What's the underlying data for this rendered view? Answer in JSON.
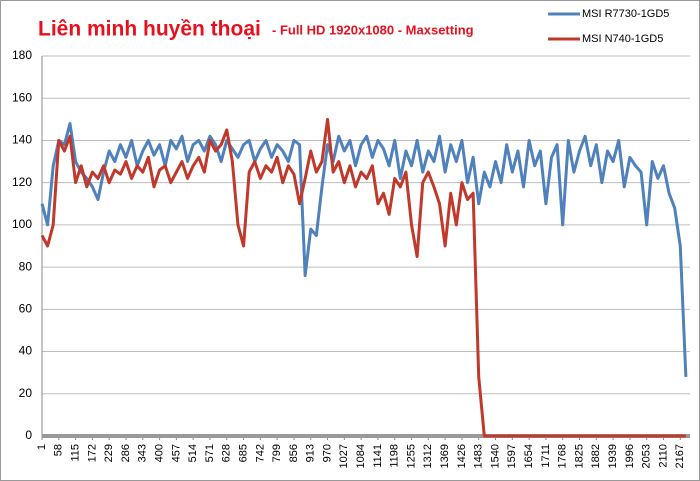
{
  "chart_data": {
    "type": "line",
    "title": "Liên minh huyền thoại",
    "subtitle": "- Full HD 1920x1080 - Maxsetting",
    "x": [
      1,
      20,
      39,
      58,
      77,
      96,
      115,
      134,
      153,
      172,
      191,
      210,
      229,
      248,
      267,
      286,
      305,
      324,
      343,
      362,
      381,
      400,
      419,
      438,
      457,
      476,
      495,
      514,
      533,
      552,
      571,
      590,
      609,
      628,
      647,
      666,
      685,
      704,
      723,
      742,
      761,
      780,
      799,
      818,
      837,
      856,
      875,
      894,
      913,
      932,
      951,
      970,
      989,
      1008,
      1027,
      1046,
      1065,
      1084,
      1103,
      1122,
      1141,
      1160,
      1179,
      1198,
      1217,
      1236,
      1255,
      1274,
      1293,
      1312,
      1331,
      1350,
      1369,
      1388,
      1407,
      1426,
      1445,
      1464,
      1483,
      1502,
      1521,
      1540,
      1559,
      1578,
      1597,
      1616,
      1635,
      1654,
      1673,
      1692,
      1711,
      1730,
      1749,
      1768,
      1787,
      1806,
      1825,
      1844,
      1863,
      1882,
      1901,
      1920,
      1939,
      1958,
      1977,
      1996,
      2015,
      2034,
      2053,
      2072,
      2091,
      2110,
      2129,
      2148,
      2167,
      2186
    ],
    "series": [
      {
        "name": "MSI R7730-1GD5",
        "color": "#4f81bd",
        "values": [
          110,
          100,
          128,
          140,
          138,
          148,
          130,
          125,
          122,
          118,
          112,
          125,
          135,
          130,
          138,
          132,
          140,
          128,
          135,
          140,
          133,
          138,
          128,
          140,
          136,
          142,
          130,
          138,
          140,
          135,
          142,
          138,
          130,
          140,
          136,
          132,
          138,
          140,
          130,
          136,
          140,
          132,
          138,
          135,
          130,
          140,
          138,
          76,
          98,
          95,
          118,
          138,
          130,
          142,
          135,
          140,
          128,
          138,
          142,
          132,
          140,
          136,
          128,
          140,
          122,
          135,
          128,
          140,
          125,
          135,
          130,
          142,
          125,
          138,
          130,
          140,
          120,
          132,
          110,
          125,
          118,
          130,
          120,
          138,
          125,
          135,
          118,
          140,
          128,
          135,
          110,
          132,
          138,
          100,
          140,
          125,
          135,
          142,
          128,
          138,
          120,
          135,
          130,
          140,
          118,
          132,
          128,
          125,
          100,
          130,
          122,
          128,
          115,
          108,
          90,
          28
        ]
      },
      {
        "name": "MSI N740-1GD5",
        "color": "#c0392b",
        "values": [
          95,
          90,
          100,
          140,
          135,
          142,
          120,
          128,
          118,
          125,
          122,
          128,
          120,
          126,
          124,
          130,
          122,
          128,
          125,
          132,
          118,
          126,
          128,
          120,
          125,
          130,
          122,
          128,
          132,
          125,
          140,
          135,
          138,
          145,
          130,
          100,
          90,
          125,
          130,
          122,
          128,
          125,
          132,
          120,
          128,
          124,
          110,
          122,
          135,
          125,
          130,
          150,
          125,
          130,
          120,
          128,
          118,
          125,
          122,
          128,
          110,
          115,
          105,
          122,
          118,
          125,
          100,
          85,
          120,
          125,
          118,
          110,
          90,
          115,
          100,
          120,
          112,
          115,
          28,
          0,
          0,
          0,
          0,
          0,
          0,
          0,
          0,
          0,
          0,
          0,
          0,
          0,
          0,
          0,
          0,
          0,
          0,
          0,
          0,
          0,
          0,
          0,
          0,
          0,
          0,
          0,
          0,
          0,
          0,
          0,
          0,
          0,
          0,
          0,
          0,
          0
        ]
      }
    ],
    "xlim": [
      1,
      2200
    ],
    "xticks": [
      1,
      58,
      115,
      172,
      229,
      286,
      343,
      400,
      457,
      514,
      571,
      628,
      685,
      742,
      799,
      856,
      913,
      970,
      1027,
      1084,
      1141,
      1198,
      1255,
      1312,
      1369,
      1426,
      1483,
      1540,
      1597,
      1654,
      1711,
      1768,
      1825,
      1882,
      1939,
      1996,
      2053,
      2110,
      2167
    ],
    "ylim": [
      0,
      180
    ],
    "yticks": [
      0,
      20,
      40,
      60,
      80,
      100,
      120,
      140,
      160,
      180
    ],
    "grid": true,
    "legend": "top-right"
  }
}
